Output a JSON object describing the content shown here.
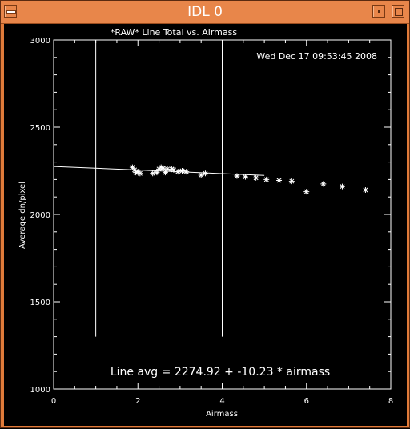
{
  "window": {
    "title": "IDL 0"
  },
  "plot": {
    "title": "*RAW* Line Total vs. Airmass",
    "timestamp": "Wed Dec 17 09:53:45 2008",
    "fit_label": "Line avg = 2274.92 + -10.23 * airmass"
  },
  "chart_data": {
    "type": "scatter",
    "title": "*RAW* Line Total vs. Airmass",
    "xlabel": "Airmass",
    "ylabel": "Average dn/pixel",
    "xlim": [
      0,
      8
    ],
    "ylim": [
      1000,
      3000
    ],
    "xticks": [
      0,
      2,
      4,
      6,
      8
    ],
    "yticks": [
      1000,
      1500,
      2000,
      2500,
      3000
    ],
    "xtick_labels": [
      "0",
      "2",
      "4",
      "6",
      "8"
    ],
    "ytick_labels": [
      "1000",
      "1500",
      "2000",
      "2500",
      "3000"
    ],
    "marker": "*",
    "color": "#ffffff",
    "points": [
      [
        1.87,
        2270
      ],
      [
        1.92,
        2255
      ],
      [
        1.95,
        2240
      ],
      [
        2.0,
        2245
      ],
      [
        2.05,
        2235
      ],
      [
        2.35,
        2235
      ],
      [
        2.45,
        2240
      ],
      [
        2.5,
        2260
      ],
      [
        2.55,
        2270
      ],
      [
        2.6,
        2265
      ],
      [
        2.65,
        2240
      ],
      [
        2.7,
        2260
      ],
      [
        2.8,
        2260
      ],
      [
        2.85,
        2255
      ],
      [
        2.95,
        2245
      ],
      [
        3.05,
        2250
      ],
      [
        3.15,
        2245
      ],
      [
        3.5,
        2225
      ],
      [
        3.6,
        2235
      ],
      [
        4.35,
        2220
      ],
      [
        4.55,
        2215
      ],
      [
        4.8,
        2210
      ],
      [
        5.05,
        2200
      ],
      [
        5.35,
        2195
      ],
      [
        5.65,
        2190
      ],
      [
        6.0,
        2130
      ],
      [
        6.4,
        2175
      ],
      [
        6.85,
        2160
      ],
      [
        7.4,
        2140
      ]
    ],
    "fit_line": {
      "intercept": 2274.92,
      "slope": -10.23,
      "x_range": [
        0,
        5
      ]
    },
    "vertical_lines": [
      {
        "x": 1.0,
        "y_range": [
          1300,
          3000
        ]
      },
      {
        "x": 4.0,
        "y_range": [
          1300,
          3000
        ]
      }
    ]
  }
}
